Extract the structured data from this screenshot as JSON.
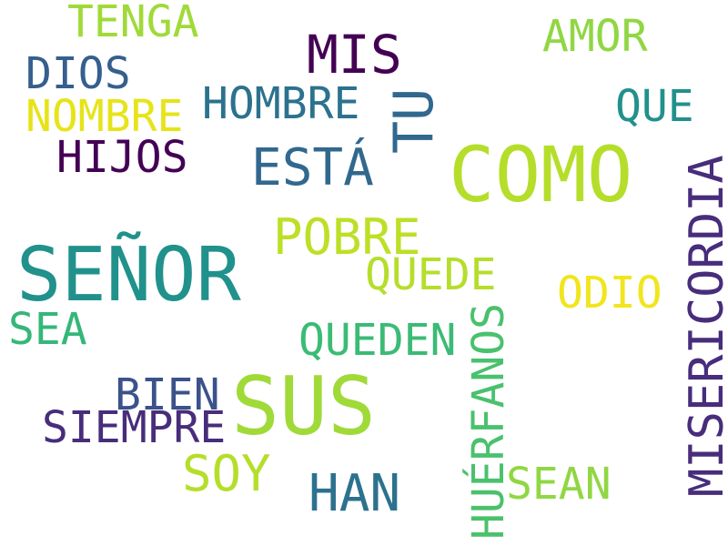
{
  "words": [
    {
      "text": "SEÑOR",
      "color": "#21918c"
    },
    {
      "text": "COMO",
      "color": "#b5de2b"
    },
    {
      "text": "SUS",
      "color": "#a0da39"
    },
    {
      "text": "MISERICORDIA",
      "color": "#472d7b"
    },
    {
      "text": "TU",
      "color": "#31688e"
    },
    {
      "text": "MIS",
      "color": "#440154"
    },
    {
      "text": "ESTÁ",
      "color": "#31688e"
    },
    {
      "text": "POBRE",
      "color": "#bddf26"
    },
    {
      "text": "HAN",
      "color": "#2c728e"
    },
    {
      "text": "HUÉRFANOS",
      "color": "#4ac16d"
    },
    {
      "text": "SOY",
      "color": "#b5de2b"
    },
    {
      "text": "HOMBRE",
      "color": "#2c728e"
    },
    {
      "text": "QUEDEN",
      "color": "#3bbb75"
    },
    {
      "text": "QUEDE",
      "color": "#b5de2b"
    },
    {
      "text": "SIEMPRE",
      "color": "#472d7b"
    },
    {
      "text": "BIEN",
      "color": "#3b528b"
    },
    {
      "text": "HIJOS",
      "color": "#440154"
    },
    {
      "text": "NOMBRE",
      "color": "#e6e419"
    },
    {
      "text": "DIOS",
      "color": "#355f8d"
    },
    {
      "text": "TENGA",
      "color": "#a0da39"
    },
    {
      "text": "AMOR",
      "color": "#90d743"
    },
    {
      "text": "QUE",
      "color": "#21918c"
    },
    {
      "text": "ODIO",
      "color": "#f1e51d"
    },
    {
      "text": "SEA",
      "color": "#35b779"
    },
    {
      "text": "SEAN",
      "color": "#90d743"
    }
  ]
}
